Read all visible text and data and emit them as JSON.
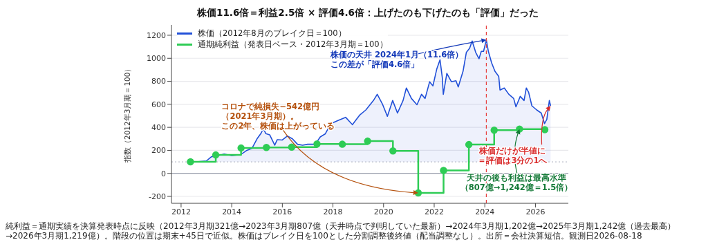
{
  "chart_data": {
    "type": "line",
    "title": "株価11.6倍＝利益2.5倍 × 評価4.6倍：上げたのも下げたのも「評価」だった",
    "ylabel": "指数（2012年3月期＝100）",
    "xlim": [
      2011.62,
      2027.3
    ],
    "xticks": [
      2012,
      2014,
      2016,
      2018,
      2020,
      2022,
      2024,
      2026
    ],
    "ylim": [
      -260,
      1290
    ],
    "yticks": [
      -200,
      0,
      200,
      400,
      600,
      800,
      1000,
      1200
    ],
    "grid": "y",
    "legend": "top left",
    "series": [
      {
        "name": "株価（2012年8月のブレイク日＝100）",
        "type": "area",
        "color": "#2150d8",
        "marker": "none",
        "x": [
          2012.6,
          2013.0,
          2013.2,
          2013.4,
          2013.7,
          2014.0,
          2014.35,
          2014.6,
          2014.8,
          2015.0,
          2015.15,
          2015.25,
          2015.35,
          2015.5,
          2015.7,
          2015.8,
          2016.0,
          2016.2,
          2016.4,
          2016.6,
          2016.8,
          2017.0,
          2017.3,
          2017.5,
          2017.7,
          2017.9,
          2018.0,
          2018.2,
          2018.5,
          2018.77,
          2019.05,
          2019.3,
          2019.6,
          2019.75,
          2019.95,
          2020.15,
          2020.36,
          2020.55,
          2020.77,
          2020.9,
          2021.1,
          2021.32,
          2021.5,
          2021.64,
          2021.82,
          2021.95,
          2022.1,
          2022.23,
          2022.32,
          2022.36,
          2022.5,
          2022.68,
          2022.86,
          2022.95,
          2023.14,
          2023.27,
          2023.4,
          2023.5,
          2023.64,
          2023.77,
          2023.86,
          2023.95,
          2024.06,
          2024.14,
          2024.27,
          2024.4,
          2024.55,
          2024.6,
          2024.77,
          2024.95,
          2025.14,
          2025.23,
          2025.4,
          2025.55,
          2025.64,
          2025.73,
          2025.86,
          2026.05,
          2026.23,
          2026.36,
          2026.45,
          2026.55,
          2026.6
        ],
        "values": [
          100,
          108,
          145,
          150,
          168,
          155,
          163,
          200,
          217,
          300,
          345,
          390,
          345,
          335,
          245,
          293,
          290,
          325,
          300,
          253,
          245,
          253,
          253,
          317,
          344,
          425,
          440,
          460,
          487,
          423,
          505,
          551,
          633,
          687,
          605,
          496,
          633,
          524,
          633,
          742,
          651,
          596,
          687,
          651,
          796,
          760,
          905,
          987,
          833,
          687,
          869,
          796,
          805,
          751,
          887,
          1051,
          1087,
          1150,
          1051,
          996,
          1060,
          1060,
          1160,
          1060,
          960,
          887,
          842,
          724,
          742,
          687,
          651,
          578,
          669,
          633,
          742,
          705,
          587,
          551,
          524,
          433,
          469,
          633,
          587
        ]
      },
      {
        "name": "通期純利益（発表日ベース・2012年3月期＝100）",
        "type": "step",
        "color": "#2ecc55",
        "marker": "circle",
        "x": [
          2012.37,
          2013.37,
          2014.37,
          2015.37,
          2016.37,
          2017.37,
          2018.37,
          2019.37,
          2020.37,
          2021.37,
          2022.37,
          2023.37,
          2024.37,
          2025.37,
          2026.37
        ],
        "values": [
          100,
          160,
          220,
          225,
          228,
          255,
          253,
          280,
          195,
          -170,
          25,
          250,
          375,
          385,
          380
        ]
      }
    ],
    "ref_lines": [
      {
        "axis": "x",
        "value": 2024.06,
        "color": "#e84040",
        "line_style": "dashed"
      },
      {
        "axis": "y",
        "value": 100,
        "color": "#b8bcc8",
        "line_style": "dotted"
      },
      {
        "axis": "y",
        "value": 0,
        "color": "#9aa0ad",
        "line_style": "solid"
      }
    ],
    "annotations": [
      {
        "text": "株価の天井 2024年1月（11.6倍）この差が「評価4.6倍」",
        "x": 2024.06,
        "y": 1160
      },
      {
        "text": "コロナで純損失−542億円（2021年3月期）。この2年、株価は上がっている",
        "x": 2021.37,
        "y": -170
      },
      {
        "text": "株価だけが半値に＝評価は3分の1へ",
        "x": 2026.6,
        "y": 587
      },
      {
        "text": "天井の後も利益は最高水準（807億→1,242億＝1.5倍）",
        "x": 2025.37,
        "y": 385
      },
      "純利益＝通期実績を決算発表時点に反映（2012年3月期321億→2023年3月期807億（天井時点で判明していた最新）→2024年3月期1,202億→2025年3月期1,242億（過去最高）→2026年3月期1,219億）。階段の位置は期末+45日で近似。株価はブレイク日を100とした分割調整後終値（配当調整なし）。出所＝会社決算短信。観測日2026-08-18"
    ]
  }
}
